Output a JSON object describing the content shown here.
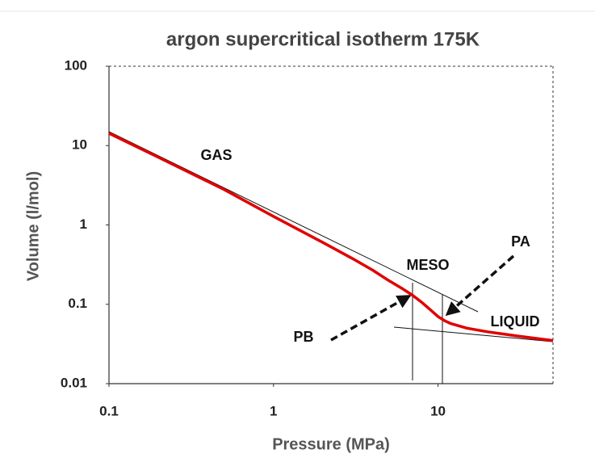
{
  "chart_data": {
    "type": "line",
    "title": "argon supercritical isotherm 175K",
    "x_label": "Pressure (MPa)",
    "y_label": "Volume (l/mol)",
    "x": [
      0.1,
      0.2,
      0.5,
      1,
      2,
      3,
      4,
      5,
      6,
      7,
      8,
      9,
      10,
      11,
      12,
      15,
      20,
      30,
      40,
      50
    ],
    "values": [
      14.3,
      7.1,
      2.8,
      1.28,
      0.6,
      0.38,
      0.27,
      0.2,
      0.16,
      0.13,
      0.105,
      0.085,
      0.07,
      0.062,
      0.057,
      0.05,
      0.045,
      0.04,
      0.037,
      0.035
    ],
    "color": "#e00000",
    "xlim": [
      0.1,
      50
    ],
    "ylim": [
      0.01,
      100
    ],
    "xticks": [
      0.1,
      1,
      10
    ],
    "yticks": [
      0.01,
      0.1,
      1,
      10,
      100
    ],
    "xscale": "log",
    "yscale": "log",
    "grid": false,
    "annotations": [
      "GAS",
      "MESO",
      "PA",
      "PB",
      "LIQUID"
    ]
  }
}
